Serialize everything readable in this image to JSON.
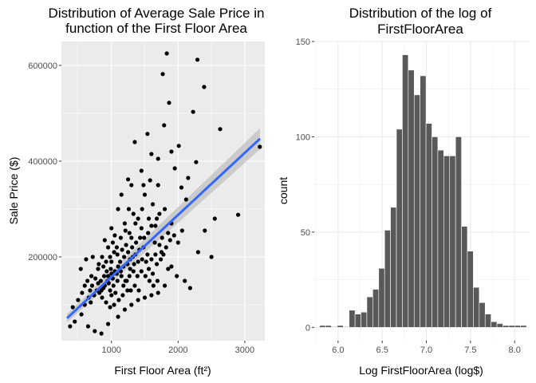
{
  "chart_data": [
    {
      "type": "scatter",
      "title_line1": "Distribution of Average Sale Price in",
      "title_line2": "function of the First Floor Area",
      "xlabel": "First Floor Area (ft²)",
      "ylabel": "Sale Price ($)",
      "xlim": [
        250,
        3300
      ],
      "ylim": [
        25000,
        650000
      ],
      "x_ticks": [
        1000,
        2000,
        3000
      ],
      "y_ticks": [
        200000,
        400000,
        600000
      ],
      "x_tick_labels": [
        "1000",
        "2000",
        "3000"
      ],
      "y_tick_labels": [
        "200000",
        "400000",
        "600000"
      ],
      "grid": true,
      "background": "#ebebeb",
      "point_color": "#000000",
      "trend_line": {
        "x0": 334,
        "y0": 72000,
        "x1": 3228,
        "y1": 447000,
        "color": "#3366ff",
        "band_color": "#bdbdbd"
      },
      "points": [
        [
          1830,
          625000
        ],
        [
          2290,
          612000
        ],
        [
          1770,
          582000
        ],
        [
          2390,
          555000
        ],
        [
          2225,
          503000
        ],
        [
          1865,
          522000
        ],
        [
          1790,
          475000
        ],
        [
          2630,
          467000
        ],
        [
          1540,
          457000
        ],
        [
          1350,
          440000
        ],
        [
          2010,
          432000
        ],
        [
          3225,
          430000
        ],
        [
          1900,
          420000
        ],
        [
          1700,
          405000
        ],
        [
          2270,
          398000
        ],
        [
          1600,
          415000
        ],
        [
          1450,
          380000
        ],
        [
          1950,
          385000
        ],
        [
          2150,
          365000
        ],
        [
          1250,
          362000
        ],
        [
          2050,
          345000
        ],
        [
          2120,
          320000
        ],
        [
          2550,
          280000
        ],
        [
          2900,
          288000
        ],
        [
          2400,
          255000
        ],
        [
          2500,
          200000
        ],
        [
          2300,
          210000
        ],
        [
          2100,
          150000
        ],
        [
          2180,
          135000
        ],
        [
          1980,
          160000
        ],
        [
          1850,
          175000
        ],
        [
          1300,
          350000
        ],
        [
          1150,
          330000
        ],
        [
          1100,
          300000
        ],
        [
          1500,
          330000
        ],
        [
          1620,
          310000
        ],
        [
          1720,
          290000
        ],
        [
          1800,
          300000
        ],
        [
          1400,
          280000
        ],
        [
          1200,
          270000
        ],
        [
          1000,
          260000
        ],
        [
          1050,
          245000
        ],
        [
          900,
          235000
        ],
        [
          950,
          220000
        ],
        [
          1700,
          350000
        ],
        [
          1580,
          360000
        ],
        [
          1300,
          240000
        ],
        [
          1450,
          260000
        ],
        [
          1550,
          250000
        ],
        [
          1650,
          230000
        ],
        [
          1750,
          210000
        ],
        [
          1850,
          250000
        ],
        [
          1900,
          270000
        ],
        [
          2000,
          230000
        ],
        [
          1000,
          190000
        ],
        [
          800,
          175000
        ],
        [
          700,
          160000
        ],
        [
          600,
          140000
        ],
        [
          500,
          110000
        ],
        [
          420,
          95000
        ],
        [
          380,
          55000
        ],
        [
          450,
          65000
        ],
        [
          550,
          80000
        ],
        [
          650,
          55000
        ],
        [
          750,
          45000
        ],
        [
          850,
          40000
        ],
        [
          950,
          60000
        ],
        [
          1100,
          75000
        ],
        [
          1200,
          90000
        ],
        [
          1300,
          100000
        ],
        [
          1400,
          110000
        ],
        [
          1500,
          115000
        ],
        [
          1600,
          120000
        ],
        [
          1700,
          125000
        ],
        [
          1800,
          140000
        ],
        [
          1900,
          180000
        ],
        [
          720,
          200000
        ],
        [
          620,
          195000
        ],
        [
          540,
          175000
        ],
        [
          820,
          125000
        ],
        [
          880,
          135000
        ],
        [
          960,
          145000
        ],
        [
          1020,
          155000
        ],
        [
          1080,
          165000
        ],
        [
          1140,
          170000
        ],
        [
          1180,
          180000
        ],
        [
          1240,
          185000
        ],
        [
          1280,
          195000
        ],
        [
          1320,
          200000
        ],
        [
          1360,
          205000
        ],
        [
          1420,
          215000
        ],
        [
          1480,
          220000
        ],
        [
          1520,
          190000
        ],
        [
          1560,
          175000
        ],
        [
          1620,
          165000
        ],
        [
          1680,
          185000
        ],
        [
          1740,
          195000
        ],
        [
          1780,
          205000
        ],
        [
          1240,
          130000
        ],
        [
          1170,
          120000
        ],
        [
          1110,
          110000
        ],
        [
          1040,
          100000
        ],
        [
          980,
          95000
        ],
        [
          920,
          105000
        ],
        [
          860,
          115000
        ],
        [
          780,
          130000
        ],
        [
          740,
          120000
        ],
        [
          690,
          105000
        ],
        [
          660,
          115000
        ],
        [
          600,
          100000
        ],
        [
          560,
          125000
        ],
        [
          980,
          130000
        ],
        [
          1030,
          140000
        ],
        [
          1090,
          150000
        ],
        [
          1150,
          160000
        ],
        [
          1210,
          150000
        ],
        [
          1270,
          160000
        ],
        [
          1330,
          170000
        ],
        [
          1390,
          160000
        ],
        [
          1450,
          170000
        ],
        [
          1510,
          160000
        ],
        [
          1570,
          150000
        ],
        [
          1630,
          140000
        ],
        [
          1690,
          150000
        ],
        [
          1410,
          130000
        ],
        [
          1350,
          140000
        ],
        [
          1290,
          130000
        ],
        [
          1060,
          125000
        ],
        [
          1000,
          120000
        ],
        [
          940,
          150000
        ],
        [
          890,
          160000
        ],
        [
          840,
          150000
        ],
        [
          800,
          145000
        ],
        [
          760,
          155000
        ],
        [
          710,
          140000
        ],
        [
          680,
          130000
        ],
        [
          640,
          150000
        ],
        [
          880,
          180000
        ],
        [
          930,
          170000
        ],
        [
          990,
          175000
        ],
        [
          1130,
          190000
        ],
        [
          1190,
          200000
        ],
        [
          1250,
          210000
        ],
        [
          1310,
          220000
        ],
        [
          1370,
          230000
        ],
        [
          1430,
          240000
        ],
        [
          1490,
          240000
        ],
        [
          1160,
          215000
        ],
        [
          1220,
          225000
        ],
        [
          1090,
          205000
        ],
        [
          1040,
          210000
        ],
        [
          980,
          200000
        ],
        [
          920,
          190000
        ],
        [
          860,
          200000
        ],
        [
          810,
          185000
        ],
        [
          1100,
          180000
        ],
        [
          1050,
          170000
        ],
        [
          1000,
          165000
        ],
        [
          950,
          160000
        ],
        [
          900,
          140000
        ],
        [
          850,
          130000
        ],
        [
          1180,
          140000
        ],
        [
          1230,
          150000
        ],
        [
          1280,
          175000
        ],
        [
          1340,
          185000
        ],
        [
          1400,
          190000
        ],
        [
          1460,
          195000
        ],
        [
          1540,
          205000
        ],
        [
          1600,
          195000
        ],
        [
          1660,
          205000
        ],
        [
          1720,
          225000
        ],
        [
          1760,
          240000
        ],
        [
          1660,
          265000
        ],
        [
          1560,
          280000
        ],
        [
          1460,
          300000
        ],
        [
          1360,
          270000
        ],
        [
          1270,
          250000
        ],
        [
          1140,
          240000
        ],
        [
          1210,
          255000
        ],
        [
          1330,
          290000
        ],
        [
          1600,
          265000
        ],
        [
          1680,
          280000
        ],
        [
          1820,
          220000
        ],
        [
          1880,
          235000
        ],
        [
          1940,
          245000
        ],
        [
          2060,
          255000
        ],
        [
          1020,
          230000
        ],
        [
          1080,
          220000
        ],
        [
          1260,
          300000
        ],
        [
          1480,
          350000
        ]
      ]
    },
    {
      "type": "bar",
      "title_line1": "Distribution of the log of",
      "title_line2": "FirstFloorArea",
      "xlabel": "Log FirstFloorArea (log$)",
      "ylabel": "count",
      "xlim": [
        5.73,
        8.17
      ],
      "ylim": [
        -7,
        150
      ],
      "x_ticks": [
        6.0,
        6.5,
        7.0,
        7.5,
        8.0
      ],
      "y_ticks": [
        0,
        50,
        100,
        150
      ],
      "x_tick_labels": [
        "6.0",
        "6.5",
        "7.0",
        "7.5",
        "8.0"
      ],
      "y_tick_labels": [
        "0",
        "50",
        "100",
        "150"
      ],
      "grid": true,
      "background": "#ffffff",
      "bar_color": "#595959",
      "bin_width": 0.067,
      "bin_starts": [
        5.79,
        5.857,
        5.924,
        5.991,
        6.058,
        6.125,
        6.192,
        6.259,
        6.326,
        6.393,
        6.46,
        6.527,
        6.594,
        6.661,
        6.728,
        6.795,
        6.862,
        6.929,
        6.996,
        7.063,
        7.13,
        7.197,
        7.264,
        7.331,
        7.398,
        7.465,
        7.532,
        7.599,
        7.666,
        7.733,
        7.8,
        7.867,
        7.934,
        8.001,
        8.068
      ],
      "values": [
        1,
        1,
        0,
        1,
        0,
        9,
        7,
        8,
        16,
        20,
        31,
        51,
        63,
        104,
        143,
        135,
        122,
        132,
        107,
        100,
        93,
        90,
        90,
        100,
        53,
        40,
        21,
        13,
        7,
        3,
        2,
        1,
        1,
        1,
        1
      ]
    }
  ]
}
